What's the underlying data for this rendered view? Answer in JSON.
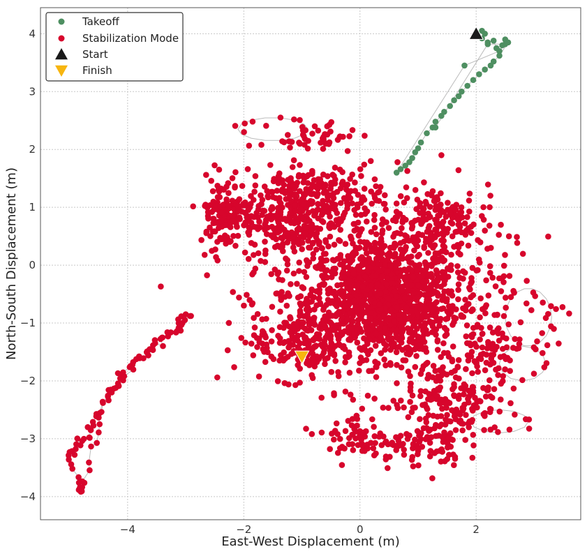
{
  "chart_data": {
    "type": "scatter",
    "xlabel": "East-West Displacement (m)",
    "ylabel": "North-South Displacement (m)",
    "xlim": [
      -5.5,
      3.8
    ],
    "ylim": [
      -4.4,
      4.45
    ],
    "x_ticks": [
      -4,
      -2,
      0,
      2
    ],
    "y_ticks": [
      -4,
      -3,
      -2,
      -1,
      0,
      1,
      2,
      3,
      4
    ],
    "x_tick_labels": [
      "−4",
      "−2",
      "0",
      "2"
    ],
    "y_tick_labels": [
      "−4",
      "−3",
      "−2",
      "−1",
      "0",
      "1",
      "2",
      "3",
      "4"
    ],
    "grid": true,
    "legend_position": "top-left",
    "path_color": "#bbbbbb",
    "series": [
      {
        "name": "Takeoff",
        "color": "#4e8f61",
        "marker": "circle",
        "x": [
          2.0,
          2.1,
          2.15,
          2.1,
          2.2,
          2.3,
          2.35,
          2.45,
          2.5,
          2.55,
          2.4,
          2.3,
          2.25,
          2.15,
          2.05,
          1.95,
          1.85,
          1.75,
          1.7,
          1.62,
          1.55,
          1.45,
          1.4,
          1.3,
          1.25,
          1.15,
          1.05,
          1.0,
          0.95,
          0.9,
          0.85,
          0.78,
          0.7,
          0.63,
          1.8,
          2.4,
          2.5,
          2.2,
          1.3
        ],
        "y": [
          4.0,
          4.05,
          4.0,
          3.92,
          3.85,
          3.88,
          3.75,
          3.8,
          3.9,
          3.85,
          3.62,
          3.52,
          3.45,
          3.38,
          3.3,
          3.2,
          3.1,
          3.0,
          2.92,
          2.85,
          2.75,
          2.65,
          2.58,
          2.48,
          2.38,
          2.28,
          2.12,
          2.02,
          1.95,
          1.85,
          1.78,
          1.72,
          1.66,
          1.6,
          3.45,
          3.7,
          3.82,
          3.82,
          2.38
        ]
      },
      {
        "name": "Stabilization Mode",
        "color": "#d7052c",
        "marker": "circle",
        "clusters": [
          {
            "cx": 0.4,
            "cy": -0.6,
            "rx": 1.15,
            "ry": 0.85,
            "n": 900
          },
          {
            "cx": 0.5,
            "cy": -0.5,
            "rx": 1.9,
            "ry": 1.5,
            "n": 650
          },
          {
            "cx": -1.2,
            "cy": 0.8,
            "rx": 0.7,
            "ry": 0.8,
            "n": 260
          },
          {
            "cx": -2.3,
            "cy": 0.9,
            "rx": 0.45,
            "ry": 0.55,
            "n": 140
          },
          {
            "cx": -0.6,
            "cy": 1.2,
            "rx": 0.9,
            "ry": 0.4,
            "n": 160
          },
          {
            "cx": 1.3,
            "cy": 0.8,
            "rx": 0.6,
            "ry": 0.5,
            "n": 120
          },
          {
            "cx": -1.1,
            "cy": -1.3,
            "rx": 0.7,
            "ry": 0.6,
            "n": 160
          },
          {
            "cx": 1.6,
            "cy": -2.3,
            "rx": 0.7,
            "ry": 0.6,
            "n": 150
          },
          {
            "cx": 1.0,
            "cy": -3.1,
            "rx": 0.7,
            "ry": 0.35,
            "n": 80
          },
          {
            "cx": 0.0,
            "cy": -3.0,
            "rx": 0.5,
            "ry": 0.35,
            "n": 60
          },
          {
            "cx": 2.2,
            "cy": -1.6,
            "rx": 0.35,
            "ry": 0.7,
            "n": 60
          },
          {
            "cx": -0.7,
            "cy": 2.2,
            "rx": 0.6,
            "ry": 0.3,
            "n": 40
          }
        ],
        "tail": {
          "x": [
            -2.9,
            -3.0,
            -3.1,
            -3.25,
            -3.4,
            -3.55,
            -3.7,
            -3.85,
            -4.0,
            -4.1,
            -4.25,
            -4.35,
            -4.45,
            -4.55,
            -4.65,
            -4.75,
            -4.85,
            -4.95,
            -5.05,
            -4.9,
            -4.8,
            -4.85,
            -4.75,
            -4.6,
            -4.5,
            -4.4,
            -4.25,
            -4.0,
            -3.8,
            -3.6,
            -3.3,
            -3.1,
            -3.0
          ],
          "y": [
            -0.9,
            -1.0,
            -1.1,
            -1.2,
            -1.3,
            -1.45,
            -1.55,
            -1.65,
            -1.8,
            -1.95,
            -2.1,
            -2.3,
            -2.5,
            -2.7,
            -2.9,
            -3.0,
            -3.1,
            -3.2,
            -3.3,
            -3.6,
            -3.85,
            -3.9,
            -3.75,
            -3.2,
            -2.8,
            -2.4,
            -2.1,
            -1.9,
            -1.6,
            -1.4,
            -1.2,
            -1.0,
            -0.85
          ]
        },
        "loops": [
          {
            "cx": -1.5,
            "cy": 2.35,
            "rx": 0.6,
            "ry": 0.2,
            "n": 14
          },
          {
            "cx": 2.9,
            "cy": -0.9,
            "rx": 0.4,
            "ry": 0.5,
            "n": 18
          },
          {
            "cx": 2.8,
            "cy": -1.7,
            "rx": 0.4,
            "ry": 0.3,
            "n": 12
          },
          {
            "cx": 2.4,
            "cy": -2.7,
            "rx": 0.5,
            "ry": 0.2,
            "n": 12
          }
        ]
      },
      {
        "name": "Start",
        "color": "#1a1a1a",
        "marker": "triangle-up",
        "x": [
          2.0
        ],
        "y": [
          4.0
        ]
      },
      {
        "name": "Finish",
        "color": "#f7b50f",
        "marker": "triangle-down",
        "x": [
          -1.0
        ],
        "y": [
          -1.58
        ]
      }
    ]
  }
}
